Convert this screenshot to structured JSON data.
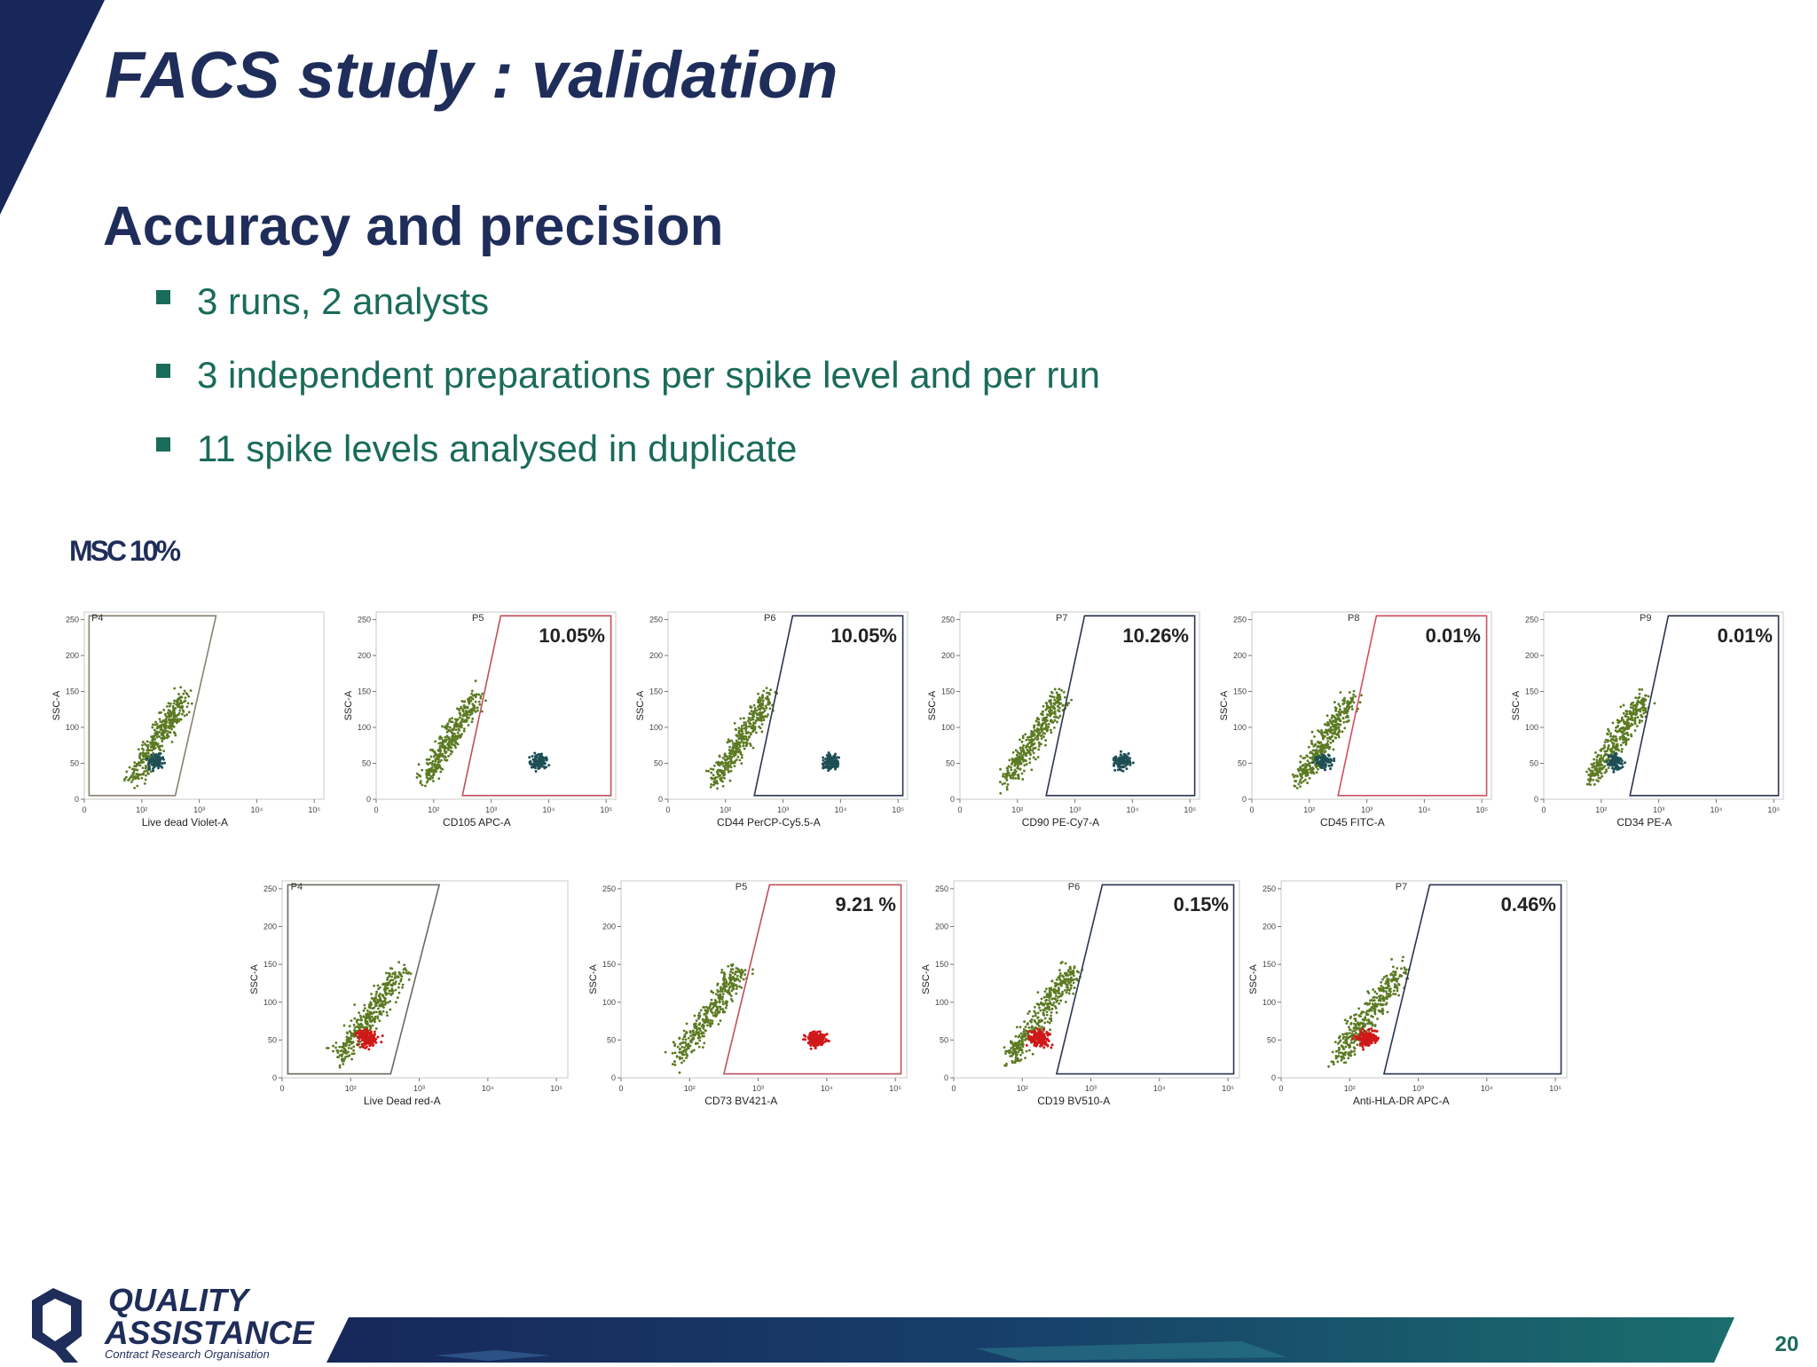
{
  "header": {
    "title": "FACS study : validation"
  },
  "section": {
    "heading": "Accuracy and precision",
    "bullets": [
      "3 runs, 2 analysts",
      "3 independent preparations per spike level and per run",
      "11 spike levels analysed in duplicate"
    ]
  },
  "figure": {
    "label": "MSC 10%",
    "y_ticks": [
      "0",
      "50",
      "100",
      "150",
      "200",
      "250"
    ],
    "x_ticks": [
      "0",
      "10²",
      "10³",
      "10⁴",
      "10⁵"
    ],
    "rows": [
      [
        {
          "gate": "P4",
          "x_label": "Live dead Violet-A",
          "y_label": "SSC-A"
        },
        {
          "gate": "P5",
          "x_label": "CD105 APC-A",
          "y_label": "SSC-A",
          "percent": "10.05%"
        },
        {
          "gate": "P6",
          "x_label": "CD44 PerCP-Cy5.5-A",
          "y_label": "SSC-A",
          "percent": "10.05%"
        },
        {
          "gate": "P7",
          "x_label": "CD90 PE-Cy7-A",
          "y_label": "SSC-A",
          "percent": "10.26%"
        },
        {
          "gate": "P8",
          "x_label": "CD45 FITC-A",
          "y_label": "SSC-A",
          "percent": "0.01%"
        },
        {
          "gate": "P9",
          "x_label": "CD34 PE-A",
          "y_label": "SSC-A",
          "percent": "0.01%"
        }
      ],
      [
        {
          "gate": "P4",
          "x_label": "Live Dead red-A",
          "y_label": "SSC-A"
        },
        {
          "gate": "P5",
          "x_label": "CD73 BV421-A",
          "y_label": "SSC-A",
          "percent": "9.21 %"
        },
        {
          "gate": "P6",
          "x_label": "CD19 BV510-A",
          "y_label": "SSC-A",
          "percent": "0.15%"
        },
        {
          "gate": "P7",
          "x_label": "Anti-HLA-DR APC-A",
          "y_label": "SSC-A",
          "percent": "0.46%"
        }
      ]
    ]
  },
  "footer": {
    "logo": {
      "line1": "QUALITY",
      "line2": "ASSISTANCE",
      "tagline": "Contract Research Organisation"
    },
    "page_number": "20"
  }
}
